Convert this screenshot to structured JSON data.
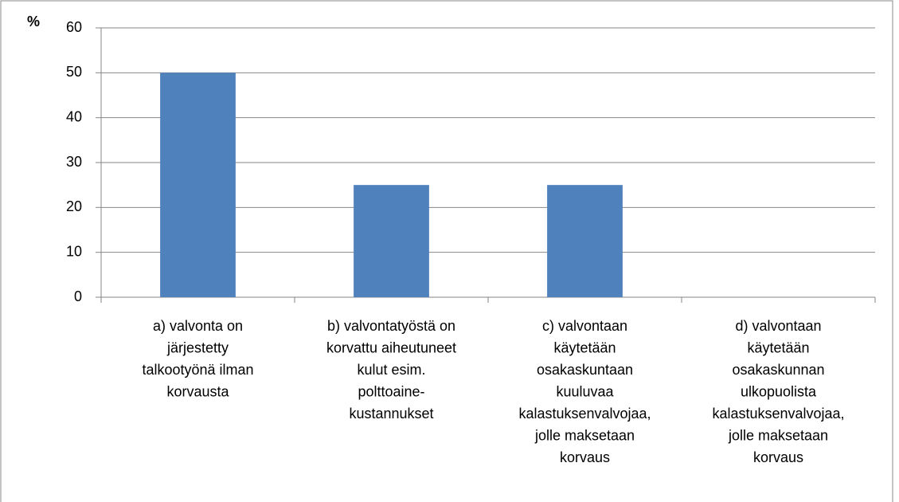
{
  "chart_data": {
    "type": "bar",
    "y_label": "%",
    "categories": [
      [
        "a) valvonta on",
        "järjestetty",
        "talkootyönä ilman",
        "korvausta"
      ],
      [
        "b) valvontatyöstä on",
        "korvattu aiheutuneet",
        "kulut esim.",
        "polttoaine-",
        "kustannukset"
      ],
      [
        "c) valvontaan",
        "käytetään",
        "osakaskuntaan",
        "kuuluvaa",
        "kalastuksenvalvojaa,",
        "jolle maksetaan",
        "korvaus"
      ],
      [
        "d) valvontaan",
        "käytetään",
        "osakaskunnan",
        "ulkopuolista",
        "kalastuksenvalvojaa,",
        "jolle maksetaan",
        "korvaus"
      ]
    ],
    "values": [
      50,
      25,
      25,
      0
    ],
    "color": "#4f81bd",
    "ylim": [
      0,
      60
    ],
    "yticks": [
      0,
      10,
      20,
      30,
      40,
      50,
      60
    ],
    "grid": true
  }
}
